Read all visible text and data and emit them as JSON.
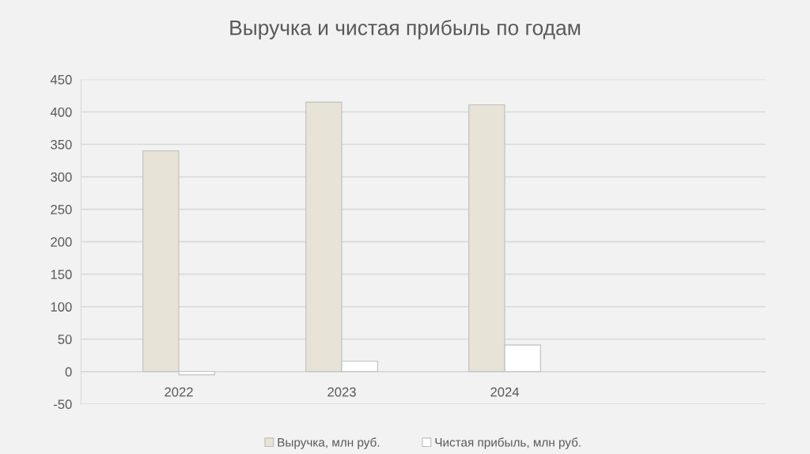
{
  "chart_data": {
    "type": "bar",
    "title": "Выручка и чистая прибыль по годам",
    "categories": [
      "2022",
      "2023",
      "2024",
      null
    ],
    "series": [
      {
        "name": "Выручка, млн руб.",
        "color": "#e7e3d7",
        "values": [
          340,
          415,
          411,
          null
        ]
      },
      {
        "name": "Чистая прибыль, млн руб.",
        "color": "#ffffff",
        "values": [
          -5,
          16,
          41,
          null
        ]
      }
    ],
    "ylim": [
      -50,
      450
    ],
    "yticks": [
      -50,
      0,
      50,
      100,
      150,
      200,
      250,
      300,
      350,
      400,
      450
    ],
    "grid": "y",
    "legend": "bottom"
  }
}
